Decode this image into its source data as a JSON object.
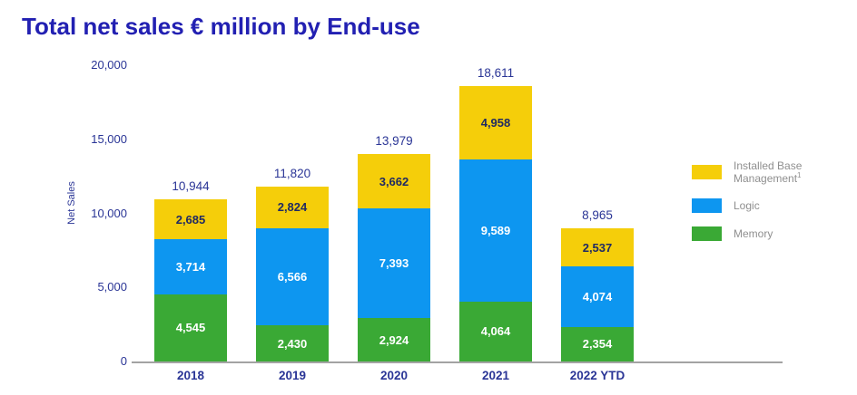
{
  "title": "Total net sales € million by End-use",
  "chart_data": {
    "type": "bar",
    "stacked": true,
    "title": "Total net sales € million by End-use",
    "ylabel": "Net Sales",
    "xlabel": "",
    "ylim": [
      0,
      20000
    ],
    "yticks": [
      0,
      5000,
      10000,
      15000,
      20000
    ],
    "ytick_labels": [
      "0",
      "5,000",
      "10,000",
      "15,000",
      "20,000"
    ],
    "grid": false,
    "legend_position": "right",
    "categories": [
      "2018",
      "2019",
      "2020",
      "2021",
      "2022 YTD"
    ],
    "series": [
      {
        "name": "Memory",
        "color": "#3AA935",
        "label_color": "#FFFFFF",
        "values": [
          4545,
          2430,
          2924,
          4064,
          2354
        ],
        "value_labels": [
          "4,545",
          "2,430",
          "2,924",
          "4,064",
          "2,354"
        ]
      },
      {
        "name": "Logic",
        "color": "#0D96F0",
        "label_color": "#FFFFFF",
        "values": [
          3714,
          6566,
          7393,
          9589,
          4074
        ],
        "value_labels": [
          "3,714",
          "6,566",
          "7,393",
          "9,589",
          "4,074"
        ]
      },
      {
        "name": "Installed Base Management",
        "color": "#F5CE0A",
        "label_color": "#1F2A63",
        "values": [
          2685,
          2824,
          3662,
          4958,
          2537
        ],
        "value_labels": [
          "2,685",
          "2,824",
          "3,662",
          "4,958",
          "2,537"
        ]
      }
    ],
    "totals": [
      10944,
      11820,
      13979,
      18611,
      8965
    ],
    "total_labels": [
      "10,944",
      "11,820",
      "13,979",
      "18,611",
      "8,965"
    ]
  },
  "legend": {
    "items": [
      {
        "label": "Installed Base Management",
        "superscript": "1",
        "color": "#F5CE0A"
      },
      {
        "label": "Logic",
        "superscript": "",
        "color": "#0D96F0"
      },
      {
        "label": "Memory",
        "superscript": "",
        "color": "#3AA935"
      }
    ]
  },
  "colors": {
    "title_text": "#2220B2",
    "axis_text": "#2A3596",
    "axis_line": "#A3A3A3",
    "legend_text": "#8F8F8F"
  }
}
